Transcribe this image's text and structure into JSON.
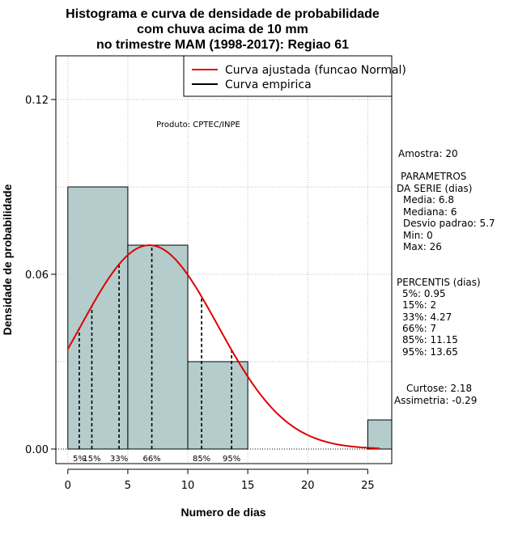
{
  "colors": {
    "bar": "#b4cccc",
    "fitted": "#e00000",
    "empirical": "#000000",
    "grid": "#bbbbbb"
  },
  "chart_data": {
    "type": "bar",
    "title_lines": [
      "Histograma e curva de densidade de probabilidade",
      "com chuva acima de 10 mm",
      "no trimestre MAM (1998-2017): Regiao 61"
    ],
    "xlabel": "Numero de dias",
    "ylabel": "Densidade de probabilidade",
    "xlim": [
      -1,
      27
    ],
    "ylim": [
      -0.005,
      0.135
    ],
    "xticks": [
      0,
      5,
      10,
      15,
      20,
      25
    ],
    "yticks": [
      0.0,
      0.06,
      0.12
    ],
    "ytick_labels": [
      "0.00",
      "0.06",
      "0.12"
    ],
    "grid": true,
    "bins": [
      {
        "x0": 0,
        "x1": 5,
        "density": 0.09
      },
      {
        "x0": 5,
        "x1": 10,
        "density": 0.07
      },
      {
        "x0": 10,
        "x1": 15,
        "density": 0.03
      },
      {
        "x0": 25,
        "x1": 30,
        "density": 0.01
      }
    ],
    "fitted_curve": {
      "distribution": "normal",
      "mean": 6.8,
      "sd": 5.7,
      "x_range": [
        0,
        26
      ]
    },
    "percentile_lines": [
      {
        "label": "5%",
        "x": 0.95
      },
      {
        "label": "15%",
        "x": 2
      },
      {
        "label": "33%",
        "x": 4.27
      },
      {
        "label": "66%",
        "x": 7
      },
      {
        "label": "85%",
        "x": 11.15
      },
      {
        "label": "95%",
        "x": 13.65
      }
    ],
    "legend": {
      "placement": "top-right",
      "entries": [
        {
          "label": "Curva ajustada (funcao Normal)",
          "color": "#e00000"
        },
        {
          "label": "Curva empirica",
          "color": "#000000"
        }
      ]
    },
    "annotation": "Produto: CPTEC/INPE"
  },
  "side_panel": {
    "sample": "Amostra: 20",
    "params_lines": [
      "PARAMETROS",
      "DA SERIE (dias)"
    ],
    "params_values": [
      "Media: 6.8",
      "Mediana: 6",
      "Desvio padrao: 5.7",
      "Min: 0",
      "Max: 26"
    ],
    "percentis_title": "PERCENTIS (dias)",
    "percentis_values": [
      "5%: 0.95",
      "15%: 2",
      "33%: 4.27",
      "66%: 7",
      "85%: 11.15",
      "95%: 13.65"
    ],
    "kurtosis": "Curtose: 2.18",
    "skewness": "Assimetria: -0.29"
  }
}
